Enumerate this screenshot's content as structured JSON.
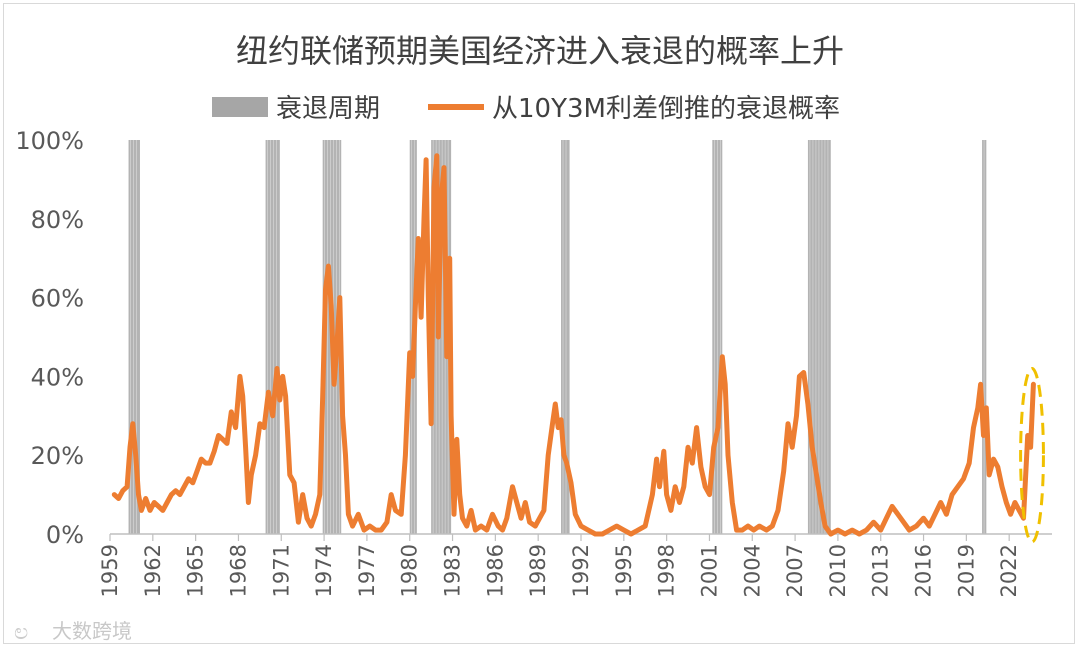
{
  "chart_data": {
    "type": "line",
    "title": "纽约联储预期美国经济进入衰退的概率上升",
    "legend": {
      "placement": "top",
      "entries": [
        {
          "label": "衰退周期",
          "color": "#a6a6a6",
          "kind": "bar"
        },
        {
          "label": "从10Y3M利差倒推的衰退概率",
          "color": "#ed7d31",
          "kind": "line"
        }
      ]
    },
    "y_axis": {
      "min": 0,
      "max": 100,
      "unit": "%",
      "ticks": [
        "0%",
        "20%",
        "40%",
        "60%",
        "80%",
        "100%"
      ],
      "tick_values": [
        0,
        20,
        40,
        60,
        80,
        100
      ]
    },
    "x_axis": {
      "min": 1959,
      "max": 2025,
      "ticks": [
        "1959",
        "1962",
        "1965",
        "1968",
        "1971",
        "1974",
        "1977",
        "1980",
        "1983",
        "1986",
        "1989",
        "1992",
        "1995",
        "1998",
        "2001",
        "2004",
        "2007",
        "2010",
        "2013",
        "2016",
        "2019",
        "2022"
      ],
      "tick_values": [
        1959,
        1962,
        1965,
        1968,
        1971,
        1974,
        1977,
        1980,
        1983,
        1986,
        1989,
        1992,
        1995,
        1998,
        2001,
        2004,
        2007,
        2010,
        2013,
        2016,
        2019,
        2022
      ]
    },
    "recessions": [
      {
        "start": 1960.3,
        "end": 1961.1
      },
      {
        "start": 1969.9,
        "end": 1970.9
      },
      {
        "start": 1973.9,
        "end": 1975.2
      },
      {
        "start": 1980.0,
        "end": 1980.5
      },
      {
        "start": 1981.5,
        "end": 1982.9
      },
      {
        "start": 1990.6,
        "end": 1991.2
      },
      {
        "start": 2001.2,
        "end": 2001.9
      },
      {
        "start": 2007.9,
        "end": 2009.5
      },
      {
        "start": 2020.1,
        "end": 2020.4
      }
    ],
    "series": [
      {
        "name": "从10Y3M利差倒推的衰退概率",
        "color": "#ed7d31",
        "points": [
          [
            1959.3,
            10
          ],
          [
            1959.6,
            9
          ],
          [
            1959.9,
            11
          ],
          [
            1960.2,
            12
          ],
          [
            1960.4,
            22
          ],
          [
            1960.6,
            28
          ],
          [
            1960.8,
            20
          ],
          [
            1961.0,
            10
          ],
          [
            1961.2,
            6
          ],
          [
            1961.5,
            9
          ],
          [
            1961.8,
            6
          ],
          [
            1962.1,
            8
          ],
          [
            1962.4,
            7
          ],
          [
            1962.7,
            6
          ],
          [
            1963.0,
            8
          ],
          [
            1963.3,
            10
          ],
          [
            1963.6,
            11
          ],
          [
            1963.9,
            10
          ],
          [
            1964.2,
            12
          ],
          [
            1964.5,
            14
          ],
          [
            1964.8,
            13
          ],
          [
            1965.1,
            16
          ],
          [
            1965.4,
            19
          ],
          [
            1965.7,
            18
          ],
          [
            1966.0,
            18
          ],
          [
            1966.3,
            21
          ],
          [
            1966.6,
            25
          ],
          [
            1966.9,
            24
          ],
          [
            1967.2,
            23
          ],
          [
            1967.5,
            31
          ],
          [
            1967.8,
            27
          ],
          [
            1968.1,
            40
          ],
          [
            1968.3,
            35
          ],
          [
            1968.5,
            22
          ],
          [
            1968.7,
            8
          ],
          [
            1968.9,
            15
          ],
          [
            1969.2,
            20
          ],
          [
            1969.5,
            28
          ],
          [
            1969.8,
            27
          ],
          [
            1970.1,
            36
          ],
          [
            1970.4,
            30
          ],
          [
            1970.7,
            42
          ],
          [
            1970.9,
            34
          ],
          [
            1971.1,
            40
          ],
          [
            1971.3,
            35
          ],
          [
            1971.6,
            15
          ],
          [
            1971.9,
            13
          ],
          [
            1972.2,
            3
          ],
          [
            1972.5,
            10
          ],
          [
            1972.8,
            4
          ],
          [
            1973.1,
            2
          ],
          [
            1973.4,
            5
          ],
          [
            1973.7,
            10
          ],
          [
            1973.9,
            35
          ],
          [
            1974.1,
            62
          ],
          [
            1974.3,
            68
          ],
          [
            1974.5,
            58
          ],
          [
            1974.7,
            38
          ],
          [
            1974.9,
            48
          ],
          [
            1975.1,
            60
          ],
          [
            1975.3,
            30
          ],
          [
            1975.5,
            20
          ],
          [
            1975.7,
            5
          ],
          [
            1976.0,
            2
          ],
          [
            1976.4,
            5
          ],
          [
            1976.8,
            1
          ],
          [
            1977.2,
            2
          ],
          [
            1977.6,
            1
          ],
          [
            1978.0,
            1
          ],
          [
            1978.4,
            3
          ],
          [
            1978.7,
            10
          ],
          [
            1979.0,
            6
          ],
          [
            1979.4,
            5
          ],
          [
            1979.7,
            20
          ],
          [
            1980.0,
            46
          ],
          [
            1980.2,
            40
          ],
          [
            1980.4,
            58
          ],
          [
            1980.6,
            75
          ],
          [
            1980.8,
            55
          ],
          [
            1981.0,
            80
          ],
          [
            1981.15,
            95
          ],
          [
            1981.3,
            60
          ],
          [
            1981.5,
            28
          ],
          [
            1981.7,
            88
          ],
          [
            1981.9,
            96
          ],
          [
            1982.0,
            50
          ],
          [
            1982.2,
            85
          ],
          [
            1982.4,
            93
          ],
          [
            1982.6,
            45
          ],
          [
            1982.8,
            70
          ],
          [
            1982.9,
            30
          ],
          [
            1983.1,
            5
          ],
          [
            1983.3,
            24
          ],
          [
            1983.5,
            10
          ],
          [
            1983.7,
            4
          ],
          [
            1984.0,
            2
          ],
          [
            1984.3,
            6
          ],
          [
            1984.6,
            1
          ],
          [
            1985.0,
            2
          ],
          [
            1985.4,
            1
          ],
          [
            1985.8,
            5
          ],
          [
            1986.2,
            2
          ],
          [
            1986.5,
            1
          ],
          [
            1986.8,
            4
          ],
          [
            1987.2,
            12
          ],
          [
            1987.5,
            8
          ],
          [
            1987.8,
            4
          ],
          [
            1988.1,
            8
          ],
          [
            1988.4,
            3
          ],
          [
            1988.8,
            2
          ],
          [
            1989.1,
            4
          ],
          [
            1989.4,
            6
          ],
          [
            1989.7,
            20
          ],
          [
            1990.0,
            28
          ],
          [
            1990.2,
            33
          ],
          [
            1990.4,
            27
          ],
          [
            1990.6,
            29
          ],
          [
            1990.8,
            20
          ],
          [
            1991.0,
            18
          ],
          [
            1991.3,
            13
          ],
          [
            1991.6,
            5
          ],
          [
            1992.0,
            2
          ],
          [
            1992.5,
            1
          ],
          [
            1993.0,
            0
          ],
          [
            1993.5,
            0
          ],
          [
            1994.0,
            1
          ],
          [
            1994.5,
            2
          ],
          [
            1995.0,
            1
          ],
          [
            1995.5,
            0
          ],
          [
            1996.0,
            1
          ],
          [
            1996.5,
            2
          ],
          [
            1997.0,
            10
          ],
          [
            1997.3,
            19
          ],
          [
            1997.5,
            12
          ],
          [
            1997.8,
            21
          ],
          [
            1998.0,
            10
          ],
          [
            1998.3,
            6
          ],
          [
            1998.6,
            12
          ],
          [
            1998.9,
            8
          ],
          [
            1999.2,
            12
          ],
          [
            1999.5,
            22
          ],
          [
            1999.8,
            18
          ],
          [
            2000.1,
            27
          ],
          [
            2000.4,
            17
          ],
          [
            2000.7,
            12
          ],
          [
            2001.0,
            10
          ],
          [
            2001.3,
            22
          ],
          [
            2001.6,
            27
          ],
          [
            2001.9,
            45
          ],
          [
            2002.1,
            38
          ],
          [
            2002.3,
            20
          ],
          [
            2002.6,
            8
          ],
          [
            2002.9,
            1
          ],
          [
            2003.3,
            1
          ],
          [
            2003.7,
            2
          ],
          [
            2004.1,
            1
          ],
          [
            2004.5,
            2
          ],
          [
            2005.0,
            1
          ],
          [
            2005.4,
            2
          ],
          [
            2005.8,
            6
          ],
          [
            2006.2,
            16
          ],
          [
            2006.5,
            28
          ],
          [
            2006.8,
            22
          ],
          [
            2007.1,
            30
          ],
          [
            2007.3,
            40
          ],
          [
            2007.6,
            41
          ],
          [
            2007.9,
            33
          ],
          [
            2008.2,
            22
          ],
          [
            2008.5,
            15
          ],
          [
            2008.8,
            8
          ],
          [
            2009.1,
            2
          ],
          [
            2009.5,
            0
          ],
          [
            2010.0,
            1
          ],
          [
            2010.5,
            0
          ],
          [
            2011.0,
            1
          ],
          [
            2011.5,
            0
          ],
          [
            2012.0,
            1
          ],
          [
            2012.5,
            3
          ],
          [
            2013.0,
            1
          ],
          [
            2013.4,
            4
          ],
          [
            2013.8,
            7
          ],
          [
            2014.2,
            5
          ],
          [
            2014.6,
            3
          ],
          [
            2015.0,
            1
          ],
          [
            2015.5,
            2
          ],
          [
            2016.0,
            4
          ],
          [
            2016.4,
            2
          ],
          [
            2016.8,
            5
          ],
          [
            2017.2,
            8
          ],
          [
            2017.6,
            5
          ],
          [
            2018.0,
            10
          ],
          [
            2018.4,
            12
          ],
          [
            2018.8,
            14
          ],
          [
            2019.2,
            18
          ],
          [
            2019.5,
            27
          ],
          [
            2019.8,
            32
          ],
          [
            2020.0,
            38
          ],
          [
            2020.2,
            25
          ],
          [
            2020.4,
            32
          ],
          [
            2020.6,
            15
          ],
          [
            2020.9,
            19
          ],
          [
            2021.2,
            17
          ],
          [
            2021.5,
            12
          ],
          [
            2021.8,
            8
          ],
          [
            2022.1,
            5
          ],
          [
            2022.4,
            8
          ],
          [
            2022.7,
            6
          ],
          [
            2023.0,
            4
          ],
          [
            2023.3,
            25
          ],
          [
            2023.5,
            22
          ],
          [
            2023.7,
            38
          ]
        ]
      }
    ],
    "annotation": {
      "kind": "ellipse",
      "color": "#f0c000",
      "x": 2023.6,
      "y_center": 20,
      "x_span": 1.6,
      "y_span": 44
    }
  },
  "watermark": "大数跨境"
}
